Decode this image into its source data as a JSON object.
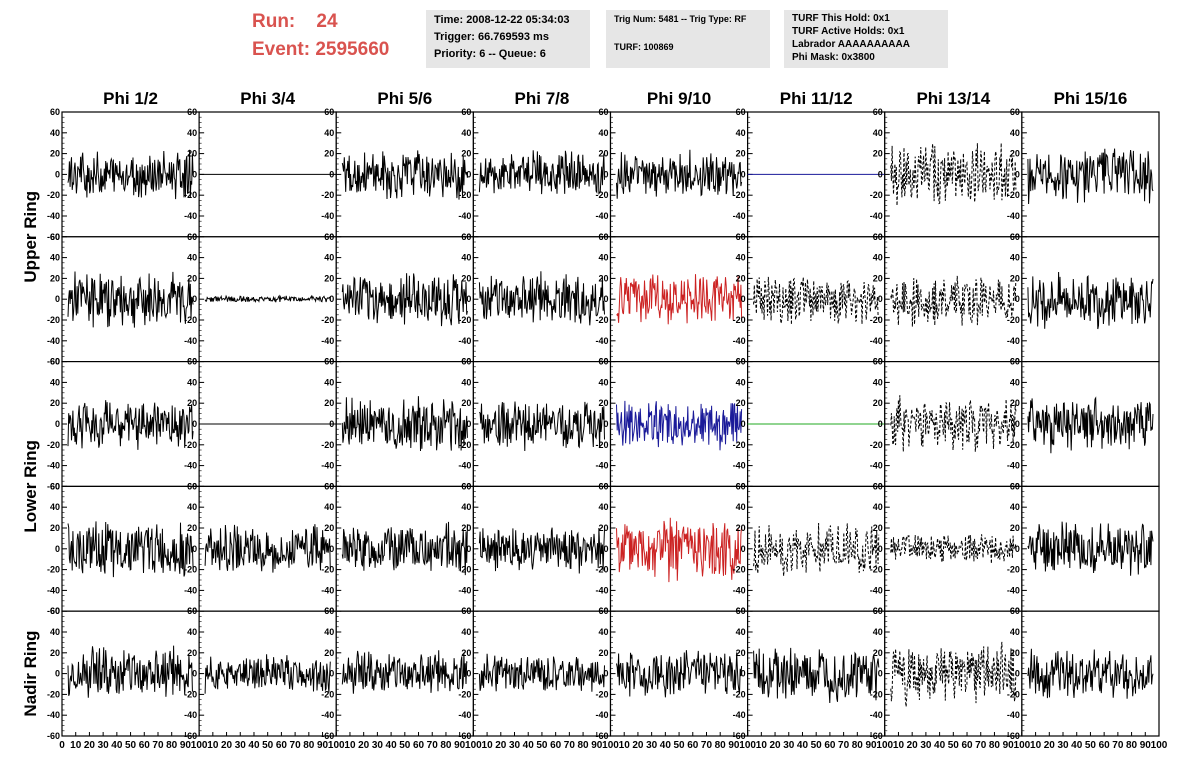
{
  "header": {
    "run_label": "Run:",
    "run_value": "24",
    "event_label": "Event:",
    "event_value": "2595660",
    "time": "Time: 2008-12-22 05:34:03",
    "trigger": "Trigger: 66.769593 ms",
    "priority": "Priority: 6 -- Queue: 6",
    "trig_num": "Trig Num: 5481 -- Trig Type: RF",
    "turf": "TURF: 100869",
    "turf_this_hold": "TURF This Hold: 0x1",
    "turf_active_holds": "TURF Active Holds: 0x1",
    "labrador": "Labrador AAAAAAAAAA",
    "phi_mask": "Phi Mask: 0x3800"
  },
  "colors": {
    "run_event": "#d9534f",
    "info_bg": "#e6e6e6",
    "red": "#cc2222",
    "blue": "#1a1a99",
    "green": "#22aa22",
    "black": "#000000"
  },
  "chart_data": {
    "type": "line",
    "columns": [
      "Phi 1/2",
      "Phi 3/4",
      "Phi 5/6",
      "Phi 7/8",
      "Phi 9/10",
      "Phi 11/12",
      "Phi 13/14",
      "Phi 15/16"
    ],
    "ring_labels": [
      "Upper Ring",
      "Lower Ring",
      "Nadir Ring"
    ],
    "ylim": [
      -60,
      60
    ],
    "yticks": [
      -60,
      -40,
      -20,
      0,
      20,
      40,
      60
    ],
    "xlim": [
      0,
      100
    ],
    "xticks": [
      0,
      10,
      20,
      30,
      40,
      50,
      60,
      70,
      80,
      90,
      100
    ],
    "grid": false,
    "panels": [
      [
        {
          "style": "solid",
          "color": "black",
          "amp": 22
        },
        {
          "style": "flat",
          "color": "black",
          "amp": 0
        },
        {
          "style": "solid",
          "color": "black",
          "amp": 22
        },
        {
          "style": "solid",
          "color": "black",
          "amp": 22
        },
        {
          "style": "solid",
          "color": "black",
          "amp": 22
        },
        {
          "style": "flat",
          "color": "blue",
          "amp": 0
        },
        {
          "style": "dashed",
          "color": "black",
          "amp": 28
        },
        {
          "style": "solid",
          "color": "black",
          "amp": 26
        }
      ],
      [
        {
          "style": "solid",
          "color": "black",
          "amp": 26
        },
        {
          "style": "solid",
          "color": "black",
          "amp": 3
        },
        {
          "style": "solid",
          "color": "black",
          "amp": 24
        },
        {
          "style": "solid",
          "color": "black",
          "amp": 24
        },
        {
          "style": "solid",
          "color": "red",
          "amp": 24
        },
        {
          "style": "dashed",
          "color": "black",
          "amp": 24
        },
        {
          "style": "dashed",
          "color": "black",
          "amp": 24
        },
        {
          "style": "solid",
          "color": "black",
          "amp": 26
        }
      ],
      [
        {
          "style": "solid",
          "color": "black",
          "amp": 22
        },
        {
          "style": "flat",
          "color": "black",
          "amp": 0
        },
        {
          "style": "solid",
          "color": "black",
          "amp": 26
        },
        {
          "style": "solid",
          "color": "black",
          "amp": 24
        },
        {
          "style": "solid",
          "color": "blue",
          "amp": 22
        },
        {
          "style": "flat",
          "color": "green",
          "amp": 0
        },
        {
          "style": "dashed",
          "color": "black",
          "amp": 26
        },
        {
          "style": "solid",
          "color": "black",
          "amp": 26
        }
      ],
      [
        {
          "style": "solid",
          "color": "black",
          "amp": 26
        },
        {
          "style": "solid",
          "color": "black",
          "amp": 22
        },
        {
          "style": "solid",
          "color": "black",
          "amp": 24
        },
        {
          "style": "solid",
          "color": "black",
          "amp": 22
        },
        {
          "style": "solid",
          "color": "red",
          "amp": 30
        },
        {
          "style": "dashed",
          "color": "black",
          "amp": 24
        },
        {
          "style": "dashed",
          "color": "black",
          "amp": 14
        },
        {
          "style": "solid",
          "color": "black",
          "amp": 26
        }
      ],
      [
        {
          "style": "solid",
          "color": "black",
          "amp": 24
        },
        {
          "style": "solid",
          "color": "black",
          "amp": 18
        },
        {
          "style": "solid",
          "color": "black",
          "amp": 20
        },
        {
          "style": "solid",
          "color": "black",
          "amp": 18
        },
        {
          "style": "solid",
          "color": "black",
          "amp": 22
        },
        {
          "style": "solid",
          "color": "black",
          "amp": 26
        },
        {
          "style": "dashed",
          "color": "black",
          "amp": 28
        },
        {
          "style": "solid",
          "color": "black",
          "amp": 22
        }
      ]
    ]
  }
}
